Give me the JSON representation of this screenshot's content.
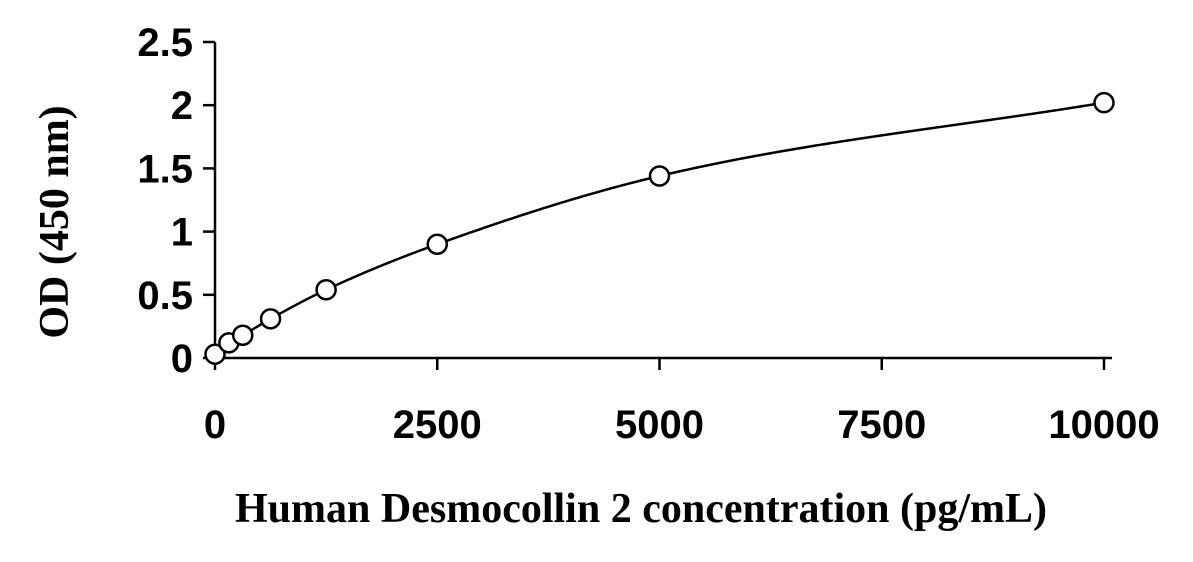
{
  "chart_data": {
    "type": "scatter",
    "xlabel": "Human Desmocollin 2 concentration (pg/mL)",
    "ylabel": "OD (450 nm)",
    "xlim": [
      0,
      10000
    ],
    "ylim": [
      0,
      2.5
    ],
    "x_ticks": [
      "0",
      "2500",
      "5000",
      "7500",
      "10000"
    ],
    "y_ticks": [
      "0",
      "0.5",
      "1",
      "1.5",
      "2",
      "2.5"
    ],
    "grid": false,
    "series": [
      {
        "marker": "open-circle",
        "x": [
          0,
          156,
          312,
          625,
          1250,
          2500,
          5000,
          10000
        ],
        "y": [
          0.03,
          0.12,
          0.18,
          0.31,
          0.54,
          0.9,
          1.44,
          2.02
        ],
        "fit": "smooth-curve"
      }
    ],
    "colors": {
      "line": "#000000",
      "marker_fill": "#ffffff",
      "background": "#ffffff"
    }
  }
}
